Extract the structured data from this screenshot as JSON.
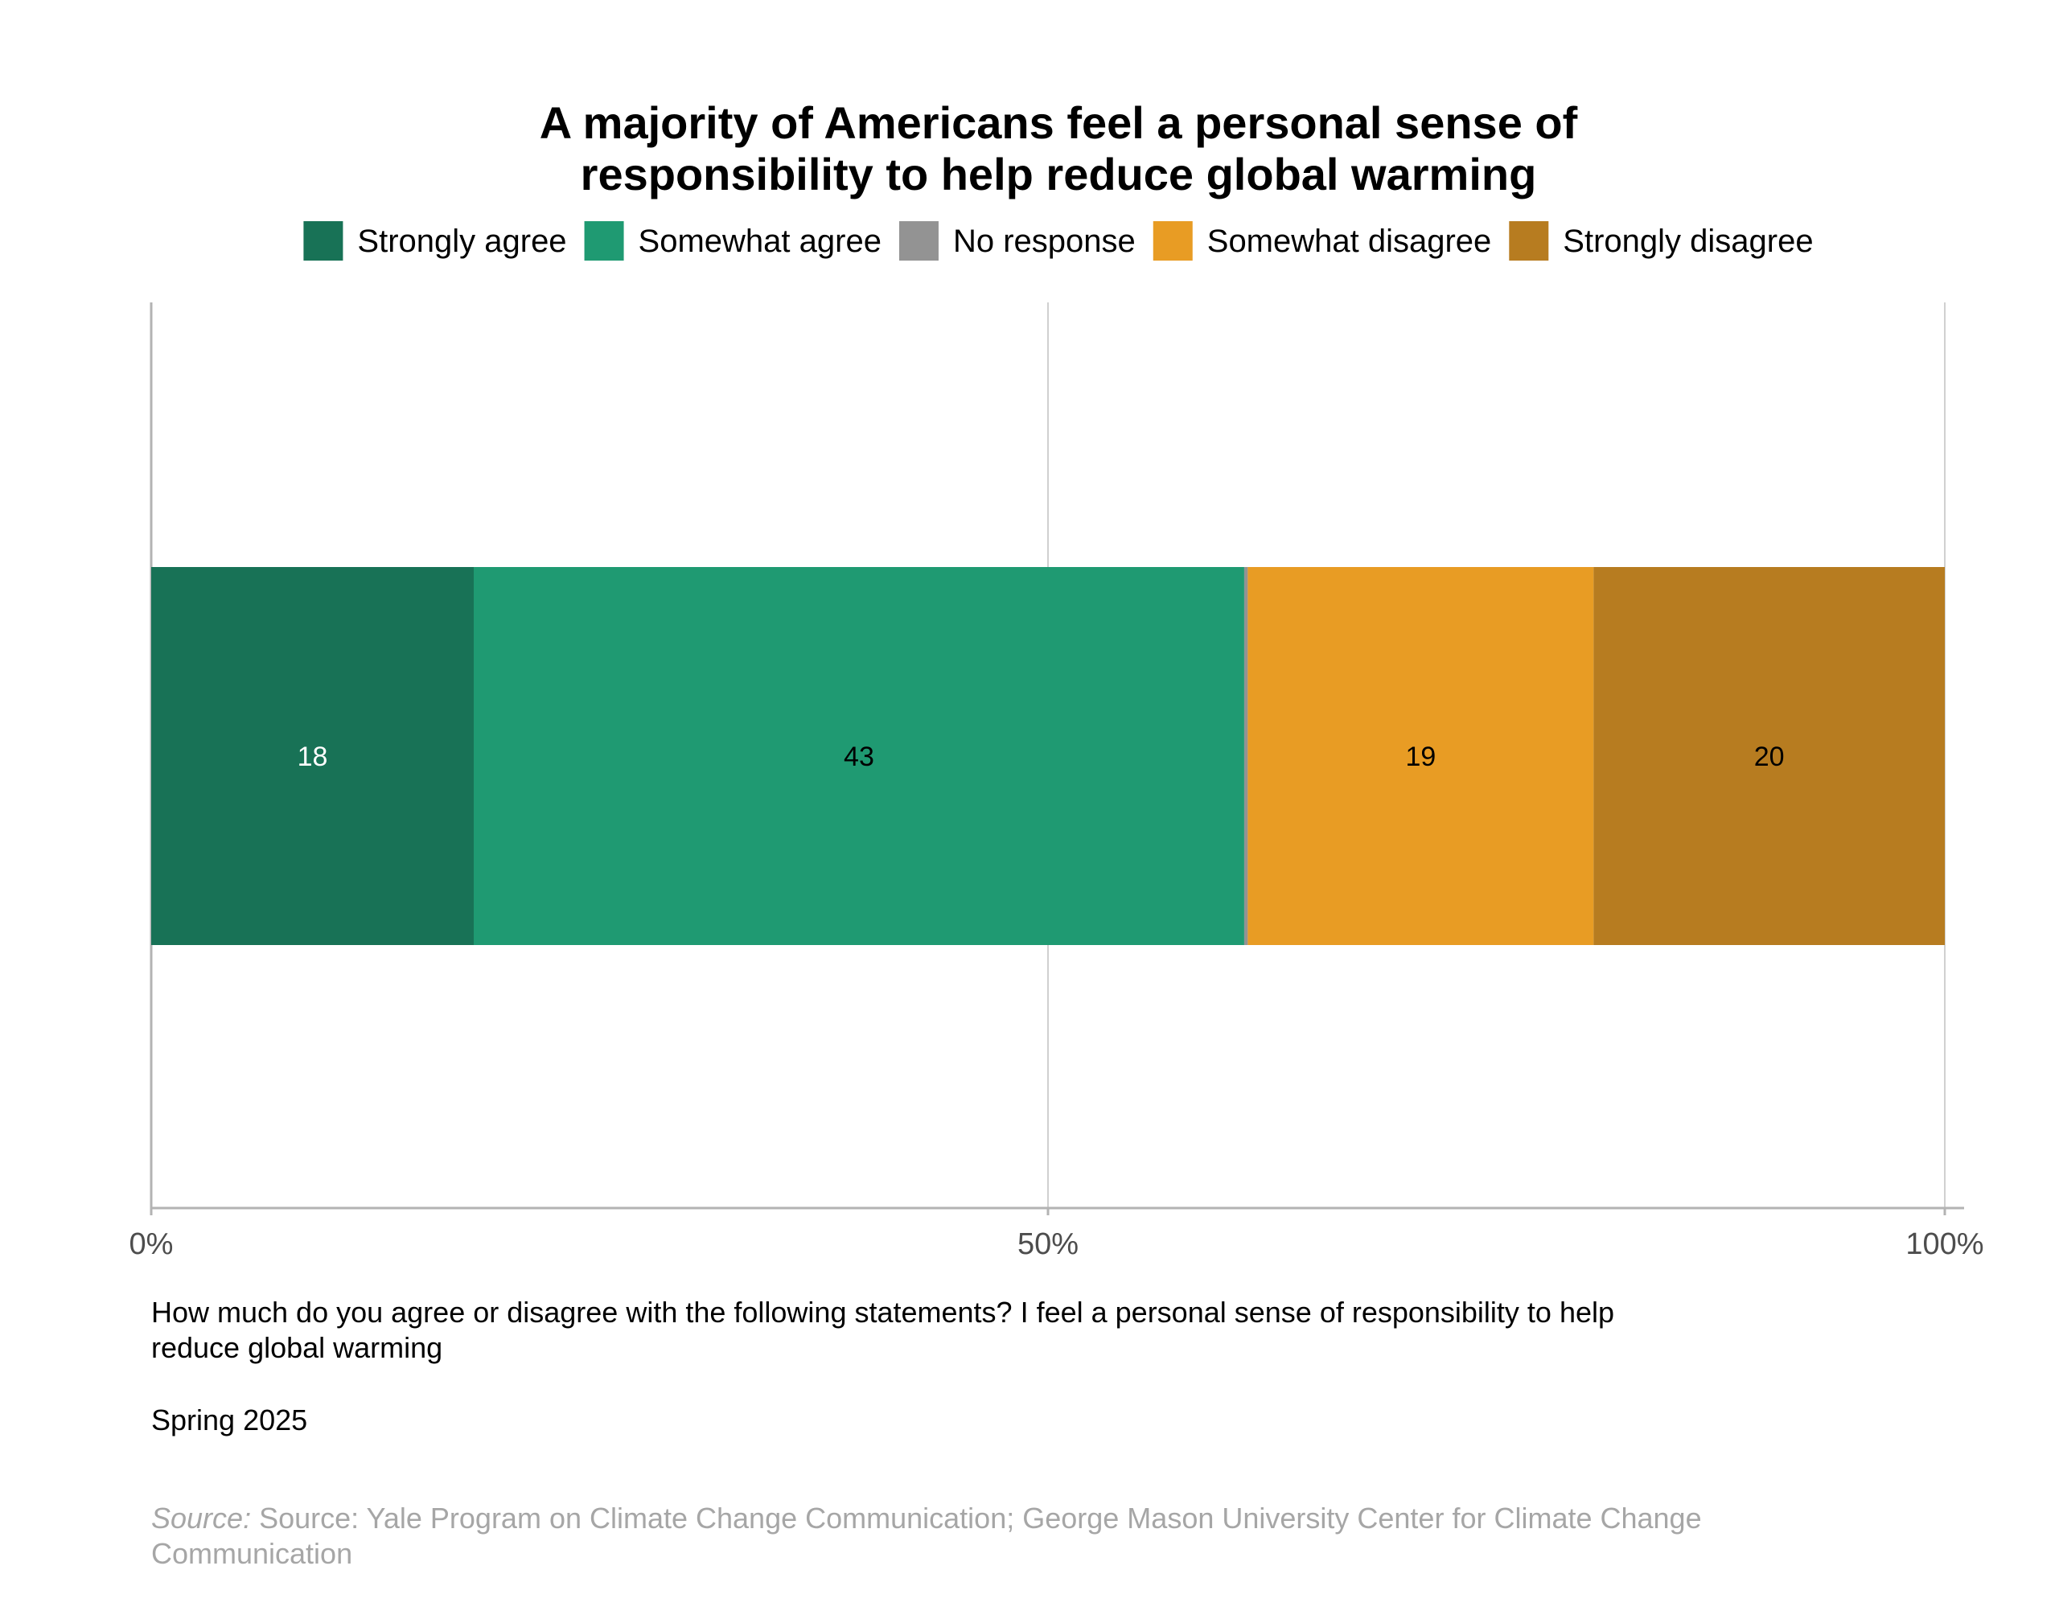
{
  "chart_data": {
    "type": "bar",
    "orientation": "horizontal",
    "stacked": true,
    "title": [
      "A majority of Americans feel a personal sense of",
      "responsibility to help reduce global warming"
    ],
    "xlim": [
      0,
      100
    ],
    "x_ticks": [
      "0%",
      "50%",
      "100%"
    ],
    "x_tick_values": [
      0,
      50,
      100
    ],
    "grid": true,
    "legend_position": "top",
    "series": [
      {
        "name": "Strongly agree",
        "value": 18,
        "label": "18",
        "color": "#187256",
        "label_color": "#ffffff"
      },
      {
        "name": "Somewhat agree",
        "value": 43,
        "label": "43",
        "color": "#1f9a72",
        "label_color": "#000000"
      },
      {
        "name": "No response",
        "value": 0.2,
        "label": "",
        "color": "#939393",
        "label_color": "#000000"
      },
      {
        "name": "Somewhat disagree",
        "value": 19.3,
        "label": "19",
        "color": "#e89c24",
        "label_color": "#000000"
      },
      {
        "name": "Strongly disagree",
        "value": 19.6,
        "label": "20",
        "color": "#b77c20",
        "label_color": "#000000"
      }
    ]
  },
  "caption": {
    "question_line1": "How much do you agree or disagree with the following statements? I feel a personal sense of responsibility to help",
    "question_line2": "reduce global warming",
    "wave": "Spring 2025"
  },
  "source": {
    "prefix": "Source:",
    "line1": "Source: Yale Program on Climate Change Communication; George Mason University Center for Climate Change",
    "line2": "Communication"
  }
}
